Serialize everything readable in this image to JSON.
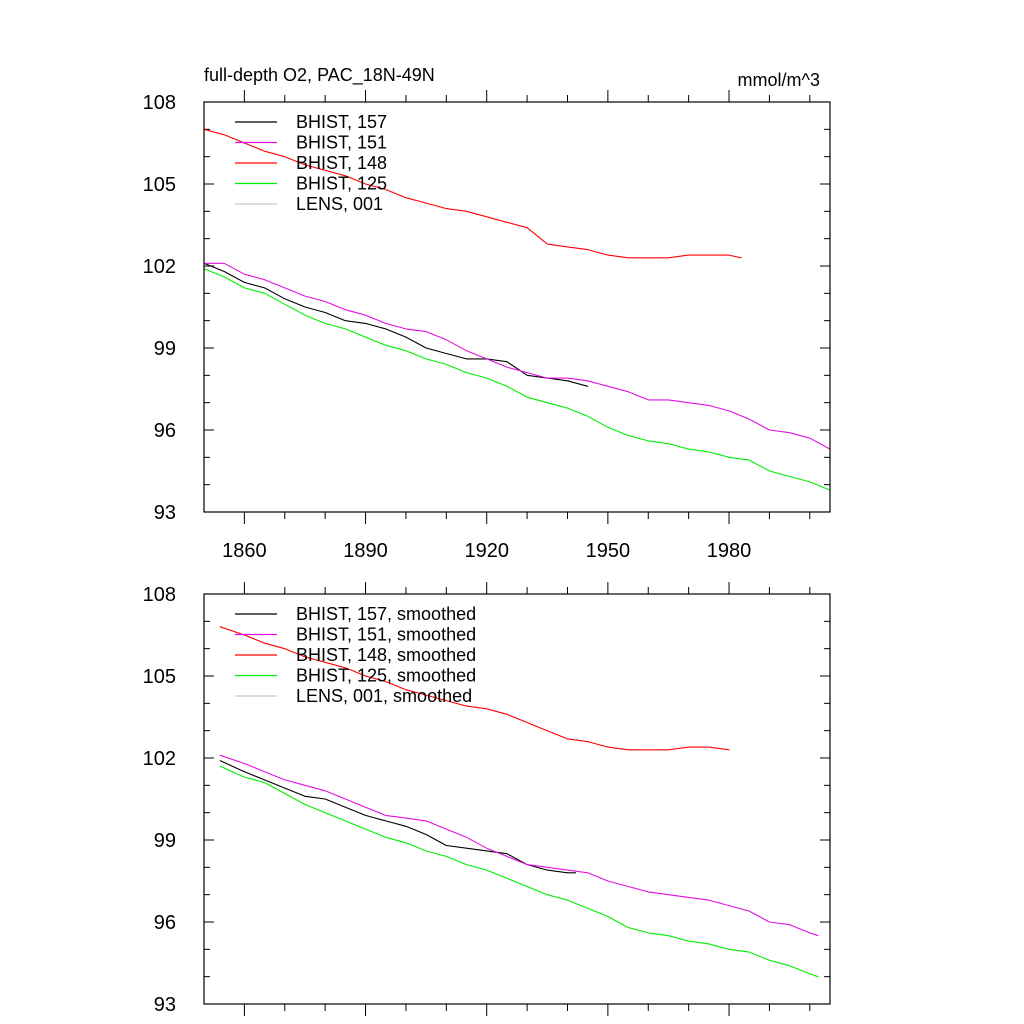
{
  "chart_data": [
    {
      "type": "line",
      "title": "full-depth O2, PAC_18N-49N",
      "units": "mmol/m^3",
      "xlim": [
        1850,
        2005
      ],
      "ylim": [
        93,
        108
      ],
      "x_ticks": [
        1860,
        1890,
        1920,
        1950,
        1980
      ],
      "y_ticks": [
        93,
        96,
        99,
        102,
        105,
        108
      ],
      "legend_position": "top-left",
      "series": [
        {
          "name": "BHIST, 157",
          "color": "#000000",
          "x": [
            1850,
            1855,
            1860,
            1865,
            1870,
            1875,
            1880,
            1885,
            1890,
            1895,
            1900,
            1905,
            1910,
            1915,
            1920,
            1925,
            1930,
            1935,
            1940,
            1945
          ],
          "y": [
            102.1,
            101.8,
            101.4,
            101.2,
            100.8,
            100.5,
            100.3,
            100.0,
            99.9,
            99.7,
            99.4,
            99.0,
            98.8,
            98.6,
            98.6,
            98.5,
            98.0,
            97.9,
            97.8,
            97.6
          ]
        },
        {
          "name": "BHIST, 151",
          "color": "#e010e0",
          "x": [
            1850,
            1855,
            1860,
            1865,
            1870,
            1875,
            1880,
            1885,
            1890,
            1895,
            1900,
            1905,
            1910,
            1915,
            1920,
            1925,
            1930,
            1935,
            1940,
            1945,
            1950,
            1955,
            1960,
            1965,
            1970,
            1975,
            1980,
            1985,
            1990,
            1995,
            2000,
            2005
          ],
          "y": [
            102.1,
            102.1,
            101.7,
            101.5,
            101.2,
            100.9,
            100.7,
            100.4,
            100.2,
            99.9,
            99.7,
            99.6,
            99.3,
            98.9,
            98.6,
            98.3,
            98.1,
            97.9,
            97.9,
            97.8,
            97.6,
            97.4,
            97.1,
            97.1,
            97.0,
            96.9,
            96.7,
            96.4,
            96.0,
            95.9,
            95.7,
            95.3
          ]
        },
        {
          "name": "BHIST, 148",
          "color": "#ff0000",
          "x": [
            1850,
            1855,
            1860,
            1865,
            1870,
            1875,
            1880,
            1885,
            1890,
            1895,
            1900,
            1905,
            1910,
            1915,
            1920,
            1925,
            1930,
            1935,
            1940,
            1945,
            1950,
            1955,
            1960,
            1965,
            1970,
            1975,
            1980,
            1983
          ],
          "y": [
            107.0,
            106.8,
            106.5,
            106.2,
            106.0,
            105.7,
            105.5,
            105.3,
            105.0,
            104.8,
            104.5,
            104.3,
            104.1,
            104.0,
            103.8,
            103.6,
            103.4,
            102.8,
            102.7,
            102.6,
            102.4,
            102.3,
            102.3,
            102.3,
            102.4,
            102.4,
            102.4,
            102.3
          ]
        },
        {
          "name": "BHIST, 125",
          "color": "#00ee00",
          "x": [
            1850,
            1855,
            1860,
            1865,
            1870,
            1875,
            1880,
            1885,
            1890,
            1895,
            1900,
            1905,
            1910,
            1915,
            1920,
            1925,
            1930,
            1935,
            1940,
            1945,
            1950,
            1955,
            1960,
            1965,
            1970,
            1975,
            1980,
            1985,
            1990,
            1995,
            2000,
            2005
          ],
          "y": [
            101.9,
            101.6,
            101.2,
            101.0,
            100.6,
            100.2,
            99.9,
            99.7,
            99.4,
            99.1,
            98.9,
            98.6,
            98.4,
            98.1,
            97.9,
            97.6,
            97.2,
            97.0,
            96.8,
            96.5,
            96.1,
            95.8,
            95.6,
            95.5,
            95.3,
            95.2,
            95.0,
            94.9,
            94.5,
            94.3,
            94.1,
            93.8
          ]
        },
        {
          "name": "LENS, 001",
          "color": "#c8c8c8",
          "x": [],
          "y": []
        }
      ]
    },
    {
      "type": "line",
      "title": "",
      "units": "",
      "xlim": [
        1850,
        2005
      ],
      "ylim": [
        93,
        108
      ],
      "x_ticks": [],
      "y_ticks": [
        93,
        96,
        99,
        102,
        105,
        108
      ],
      "legend_position": "top-left",
      "series": [
        {
          "name": "BHIST, 157, smoothed",
          "color": "#000000",
          "x": [
            1854,
            1860,
            1865,
            1870,
            1875,
            1880,
            1885,
            1890,
            1895,
            1900,
            1905,
            1910,
            1915,
            1920,
            1925,
            1930,
            1935,
            1940,
            1942
          ],
          "y": [
            101.9,
            101.5,
            101.2,
            100.9,
            100.6,
            100.5,
            100.2,
            99.9,
            99.7,
            99.5,
            99.2,
            98.8,
            98.7,
            98.6,
            98.5,
            98.1,
            97.9,
            97.8,
            97.8
          ]
        },
        {
          "name": "BHIST, 151, smoothed",
          "color": "#e010e0",
          "x": [
            1854,
            1860,
            1865,
            1870,
            1875,
            1880,
            1885,
            1890,
            1895,
            1900,
            1905,
            1910,
            1915,
            1920,
            1925,
            1930,
            1935,
            1940,
            1945,
            1950,
            1955,
            1960,
            1965,
            1970,
            1975,
            1980,
            1985,
            1990,
            1995,
            2000,
            2002
          ],
          "y": [
            102.1,
            101.8,
            101.5,
            101.2,
            101.0,
            100.8,
            100.5,
            100.2,
            99.9,
            99.8,
            99.7,
            99.4,
            99.1,
            98.7,
            98.4,
            98.1,
            98.0,
            97.9,
            97.8,
            97.5,
            97.3,
            97.1,
            97.0,
            96.9,
            96.8,
            96.6,
            96.4,
            96.0,
            95.9,
            95.6,
            95.5
          ]
        },
        {
          "name": "BHIST, 148, smoothed",
          "color": "#ff0000",
          "x": [
            1854,
            1860,
            1865,
            1870,
            1875,
            1880,
            1885,
            1890,
            1895,
            1900,
            1905,
            1910,
            1915,
            1920,
            1925,
            1930,
            1935,
            1940,
            1945,
            1950,
            1955,
            1960,
            1965,
            1970,
            1975,
            1980
          ],
          "y": [
            106.8,
            106.5,
            106.2,
            106.0,
            105.7,
            105.5,
            105.3,
            105.0,
            104.8,
            104.5,
            104.3,
            104.1,
            103.9,
            103.8,
            103.6,
            103.3,
            103.0,
            102.7,
            102.6,
            102.4,
            102.3,
            102.3,
            102.3,
            102.4,
            102.4,
            102.3
          ]
        },
        {
          "name": "BHIST, 125, smoothed",
          "color": "#00ee00",
          "x": [
            1854,
            1860,
            1865,
            1870,
            1875,
            1880,
            1885,
            1890,
            1895,
            1900,
            1905,
            1910,
            1915,
            1920,
            1925,
            1930,
            1935,
            1940,
            1945,
            1950,
            1955,
            1960,
            1965,
            1970,
            1975,
            1980,
            1985,
            1990,
            1995,
            2000,
            2002
          ],
          "y": [
            101.7,
            101.3,
            101.1,
            100.7,
            100.3,
            100.0,
            99.7,
            99.4,
            99.1,
            98.9,
            98.6,
            98.4,
            98.1,
            97.9,
            97.6,
            97.3,
            97.0,
            96.8,
            96.5,
            96.2,
            95.8,
            95.6,
            95.5,
            95.3,
            95.2,
            95.0,
            94.9,
            94.6,
            94.4,
            94.1,
            94.0
          ]
        },
        {
          "name": "LENS, 001, smoothed",
          "color": "#c8c8c8",
          "x": [],
          "y": []
        }
      ]
    }
  ]
}
